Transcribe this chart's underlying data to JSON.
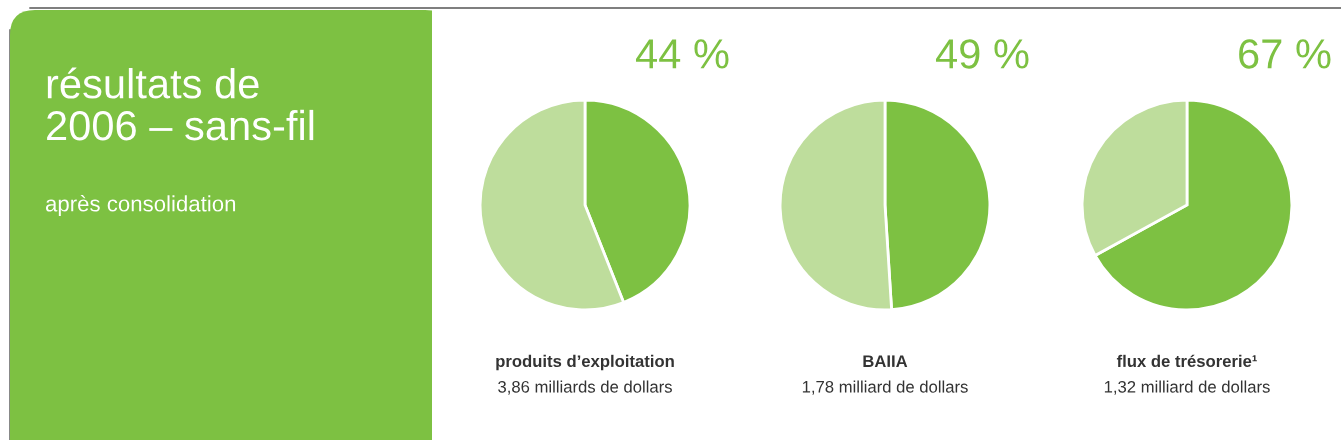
{
  "chart_data": [
    {
      "type": "other",
      "title": "résultats de\n2006 – sans-fil",
      "subtitle": "après consolidation"
    },
    {
      "type": "pie",
      "title": "44 %",
      "categories": [
        null,
        null
      ],
      "values": [
        44,
        56
      ],
      "colors": [
        "#7dc142",
        "#bedd9c"
      ],
      "annotations": [
        "produits d’exploitation",
        "3,86 milliards de dollars"
      ]
    },
    {
      "type": "pie",
      "title": "49 %",
      "categories": [
        null,
        null
      ],
      "values": [
        49,
        51
      ],
      "colors": [
        "#7dc142",
        "#bedd9c"
      ],
      "annotations": [
        "BAIIA",
        "1,78 milliard de dollars"
      ]
    },
    {
      "type": "pie",
      "title": "67 %",
      "categories": [
        null,
        null
      ],
      "values": [
        67,
        33
      ],
      "colors": [
        "#7dc142",
        "#bedd9c"
      ],
      "annotations": [
        "flux de trésorerie¹",
        "1,32 milliard de dollars"
      ]
    }
  ]
}
